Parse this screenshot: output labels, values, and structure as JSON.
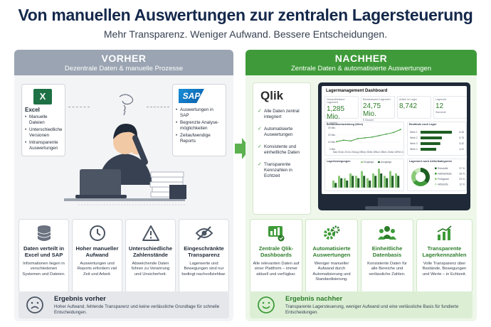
{
  "header": {
    "title": "Von manuellen Auswertungen zur zentralen Lagersteuerung",
    "subtitle": "Mehr Transparenz. Weniger Aufwand. Bessere Entscheidungen."
  },
  "before": {
    "title": "VORHER",
    "subtitle": "Dezentrale Daten & manuelle Prozesse",
    "excel": {
      "label": "Excel",
      "items": [
        "Manuelle Dateien",
        "Unterschiedliche Versionen",
        "Intransparente Auswertungen"
      ]
    },
    "sap": {
      "logo": "SAP",
      "items": [
        "Auswertungen in SAP",
        "Begrenzte Analyse-möglichkeiten",
        "Zeitaufwendige Reports"
      ]
    },
    "features": [
      {
        "icon": "database-icon",
        "title": "Daten verteilt in Excel und SAP",
        "desc": "Informationen liegen in verschiedenen Systemen und Dateien."
      },
      {
        "icon": "clock-icon",
        "title": "Hoher manueller Aufwand",
        "desc": "Auswertungen und Reports erfordern viel Zeit und Arbeit."
      },
      {
        "icon": "warning-icon",
        "title": "Unterschiedliche Zahlenstände",
        "desc": "Abweichende Daten führen zu Verwirrung und Unsicherheit."
      },
      {
        "icon": "eye-off-icon",
        "title": "Eingeschränkte Transparenz",
        "desc": "Lagerwerte und Bewegungen sind nur bedingt nachvollziehbar."
      }
    ],
    "result": {
      "title": "Ergebnis vorher",
      "text": "Hoher Aufwand, fehlende Transparenz und keine verlässliche Grundlage für schnelle Entscheidungen."
    }
  },
  "after": {
    "title": "NACHHER",
    "subtitle": "Zentrale Daten & automatisierte Auswertungen",
    "qlik": {
      "logo": "Qlik",
      "items": [
        "Alle Daten zentral integriert",
        "Automatisierte Auswertungen",
        "Konsistente und einheitliche Daten",
        "Transparente Kennzahlen in Echtzeit"
      ]
    },
    "dashboard": {
      "title": "Lagermanagement Dashboard",
      "kpis": [
        {
          "label": "Gesamtbestand Lagerwert",
          "value": "1,285 Mio.",
          "sub": "€ Gesamt"
        },
        {
          "label": "Bestandswert Lagerwert",
          "value": "24,75 Mio.",
          "sub": "€ Gesamt"
        },
        {
          "label": "Artikel im Lager",
          "value": "8,742",
          "sub": ""
        },
        {
          "label": "Lagerorte",
          "value": "12",
          "sub": "Standorte"
        }
      ],
      "trend_label": "Bestandsentwicklung (Wert)",
      "stock_label": "Bestände nach Lager",
      "moves_label": "Lagerbewegungen",
      "share_label": "Lagerwert nach Artikelkategorien",
      "legend_moves": [
        "Eingänge",
        "Ausgänge"
      ],
      "stock_rows": [
        {
          "name": "Werk 1",
          "value": "8,45"
        },
        {
          "name": "Werk 2",
          "value": "5,75"
        },
        {
          "name": "Werk 3",
          "value": "5,32"
        },
        {
          "name": "Werk 4",
          "value": "4,22"
        }
      ],
      "share_rows": [
        {
          "name": "Rohstoffe",
          "value": "37 %"
        },
        {
          "name": "Halbfabrikate",
          "value": "28 %"
        },
        {
          "name": "Fertigware",
          "value": "23 %"
        },
        {
          "name": "Hilfsstoffe",
          "value": "12 %"
        }
      ],
      "trend_values": [
        5,
        6,
        5.5,
        7,
        7.5,
        8,
        9,
        10,
        11,
        13
      ],
      "trend_xticks": [
        "Mai 23",
        "Jun 23",
        "Jul 23",
        "Aug 23",
        "Sep 23",
        "Okt 23",
        "Nov 23",
        "Dez 23",
        "Jan 24",
        "Feb 24"
      ],
      "trend_yticks": [
        "30 Mio.",
        "20 Mio.",
        "10 Mio.",
        "0 Mio."
      ],
      "stock_values": [
        8.45,
        5.75,
        5.32,
        4.22
      ],
      "moves_in": [
        3,
        5,
        4,
        6,
        5,
        7,
        4,
        6,
        8,
        5,
        7,
        6
      ],
      "moves_out": [
        2,
        4,
        3,
        5,
        4,
        5,
        3,
        5,
        6,
        4,
        5,
        5
      ],
      "share_values": [
        37,
        28,
        23,
        12
      ],
      "colors": {
        "dark": "#1e5e23",
        "mid": "#3f9b3a",
        "light": "#8cc97a",
        "pale": "#c9e7bd"
      }
    },
    "features": [
      {
        "icon": "dashboard-icon",
        "title": "Zentrale Qlik-Dashboards",
        "desc": "Alle relevanten Daten auf einer Plattform – immer aktuell und verfügbar."
      },
      {
        "icon": "gears-icon",
        "title": "Automatisierte Auswertungen",
        "desc": "Weniger manueller Aufwand durch Automatisierung und Standardisierung."
      },
      {
        "icon": "team-icon",
        "title": "Einheitliche Datenbasis",
        "desc": "Konsistente Daten für alle Bereiche und verlässliche Zahlen."
      },
      {
        "icon": "chart-icon",
        "title": "Transparente Lagerkennzahlen",
        "desc": "Volle Transparenz über Bestände, Bewegungen und Werte – in Echtzeit."
      }
    ],
    "result": {
      "title": "Ergebnis nachher",
      "text": "Transparente Lagersteuerung, weniger Aufwand und eine verlässliche Basis für fundierte Entscheidungen."
    }
  }
}
